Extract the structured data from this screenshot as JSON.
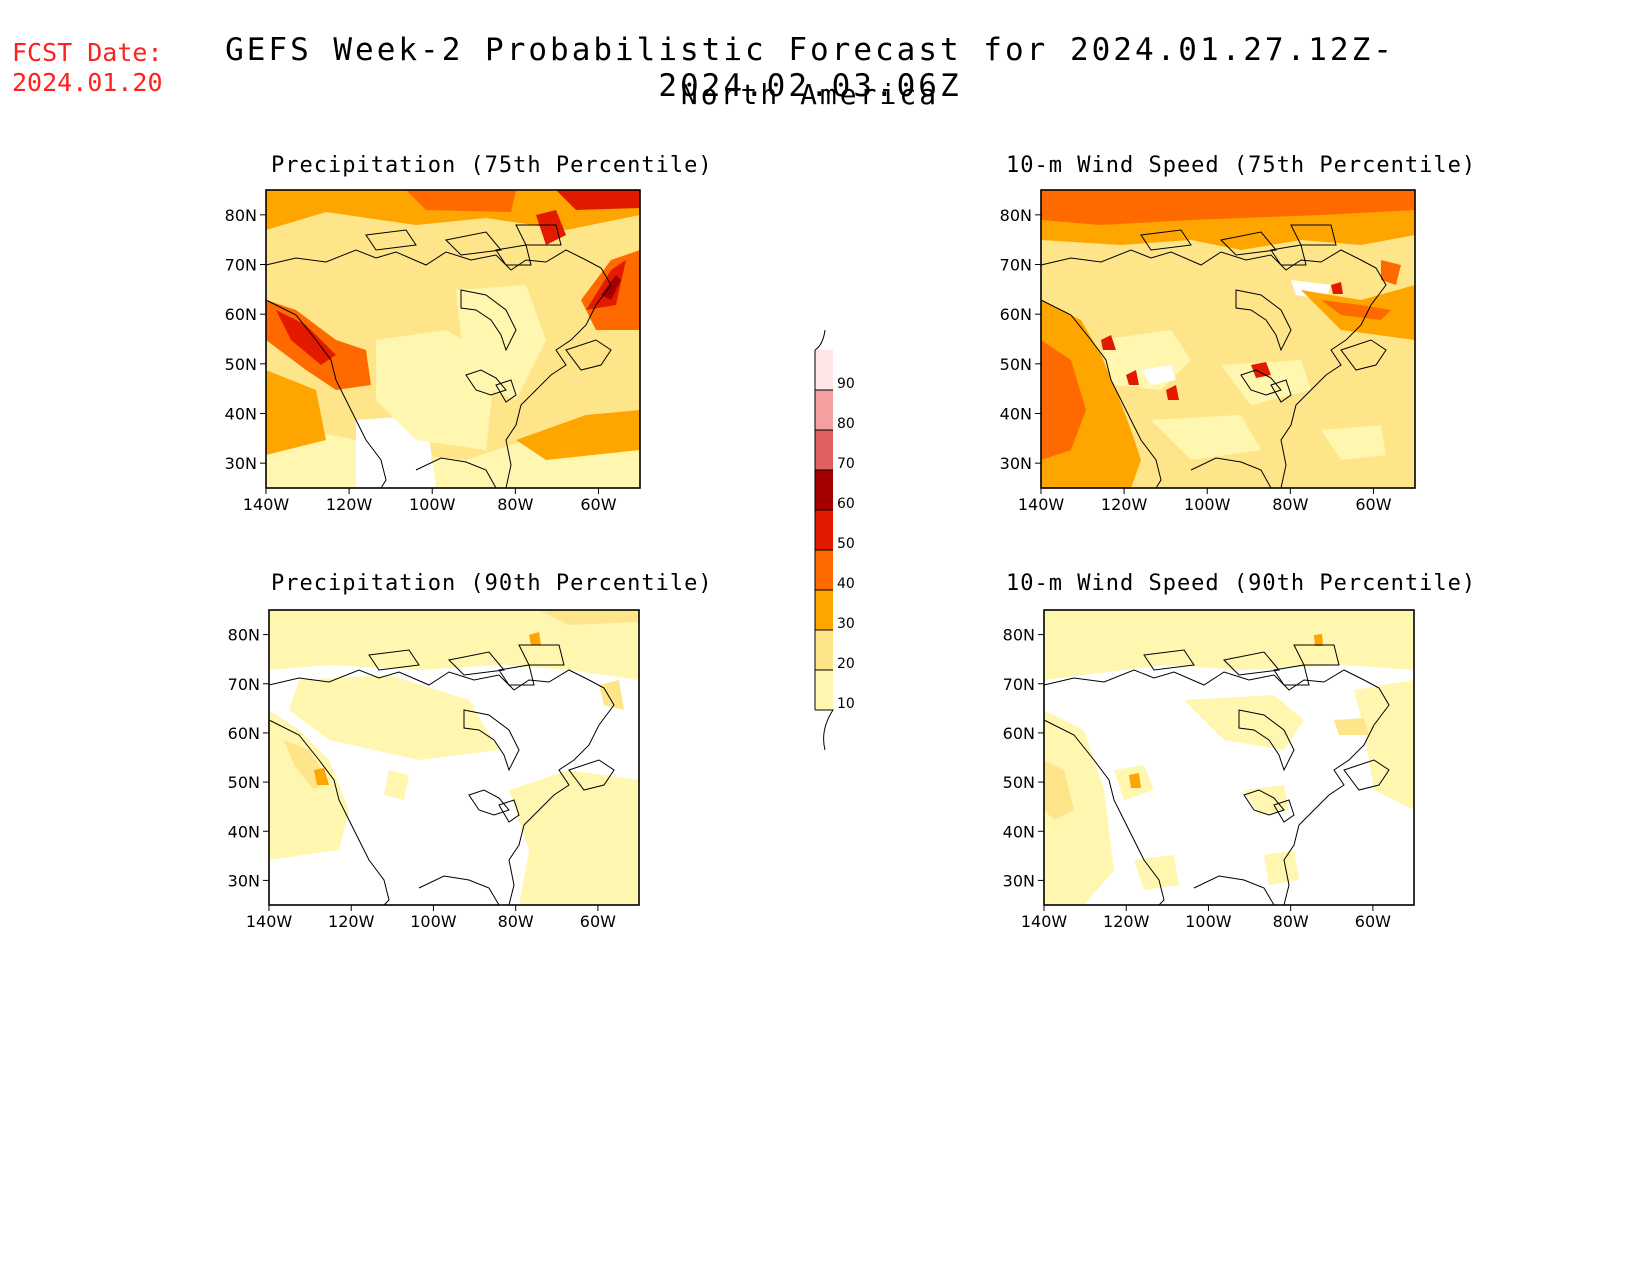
{
  "forecast_date": {
    "line1": "FCST Date:",
    "line2": "2024.01.20"
  },
  "title": "GEFS Week-2 Probabilistic Forecast for 2024.01.27.12Z-2024.02.03.06Z",
  "subtitle": "North America",
  "lat_ticks": [
    "80N",
    "70N",
    "60N",
    "50N",
    "40N",
    "30N"
  ],
  "lon_ticks": [
    "140W",
    "120W",
    "100W",
    "80W",
    "60W"
  ],
  "panels": [
    {
      "title": "Precipitation (75th Percentile)"
    },
    {
      "title": "10-m Wind Speed (75th Percentile)"
    },
    {
      "title": "Precipitation (90th Percentile)"
    },
    {
      "title": "10-m Wind Speed (90th Percentile)"
    }
  ],
  "colorbar": {
    "labels": [
      "10",
      "20",
      "30",
      "40",
      "50",
      "60",
      "70",
      "80",
      "90"
    ],
    "colors": [
      "#fff7b0",
      "#ffe58a",
      "#ffa500",
      "#ff6a00",
      "#e41a00",
      "#a50000",
      "#e06060",
      "#f4a0a0",
      "#ffe6e6"
    ]
  },
  "colors": {
    "land_outline": "#000000",
    "fcst_date": "#ff2020"
  }
}
